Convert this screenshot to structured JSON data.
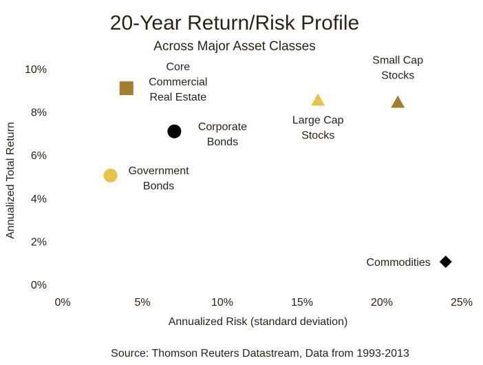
{
  "chart_data": {
    "type": "scatter",
    "title": "20-Year Return/Risk Profile",
    "subtitle": "Across Major Asset Classes",
    "xlabel": "Annualized Risk (standard deviation)",
    "ylabel": "Annualized Total Return",
    "xlim": [
      0,
      25
    ],
    "ylim": [
      0,
      10
    ],
    "x_ticks": [
      "0%",
      "5%",
      "10%",
      "15%",
      "20%",
      "25%"
    ],
    "y_ticks": [
      "0%",
      "2%",
      "4%",
      "6%",
      "8%",
      "10%"
    ],
    "grid": false,
    "legend": "none",
    "points": [
      {
        "label": [
          "Core",
          "Commercial",
          "Real Estate"
        ],
        "x": 4.0,
        "y": 9.1,
        "shape": "square",
        "color": "#a57d2c",
        "label_pos": "right-multi"
      },
      {
        "label": [
          "Corporate",
          "Bonds"
        ],
        "x": 7.0,
        "y": 7.1,
        "shape": "circle",
        "color": "#000000",
        "label_pos": "right"
      },
      {
        "label": [
          "Government",
          "Bonds"
        ],
        "x": 3.0,
        "y": 5.05,
        "shape": "circle",
        "color": "#e8c34a",
        "label_pos": "right"
      },
      {
        "label": [
          "Large Cap",
          "Stocks"
        ],
        "x": 16.0,
        "y": 8.55,
        "shape": "triangle",
        "color": "#e8c34a",
        "label_pos": "below"
      },
      {
        "label": [
          "Small Cap",
          "Stocks"
        ],
        "x": 21.0,
        "y": 8.45,
        "shape": "triangle",
        "color": "#a57d2c",
        "label_pos": "above"
      },
      {
        "label": [
          "Commodities"
        ],
        "x": 24.0,
        "y": 1.05,
        "shape": "diamond",
        "color": "#000000",
        "label_pos": "left"
      }
    ]
  },
  "source": "Source: Thomson Reuters Datastream, Data from 1993-2013"
}
